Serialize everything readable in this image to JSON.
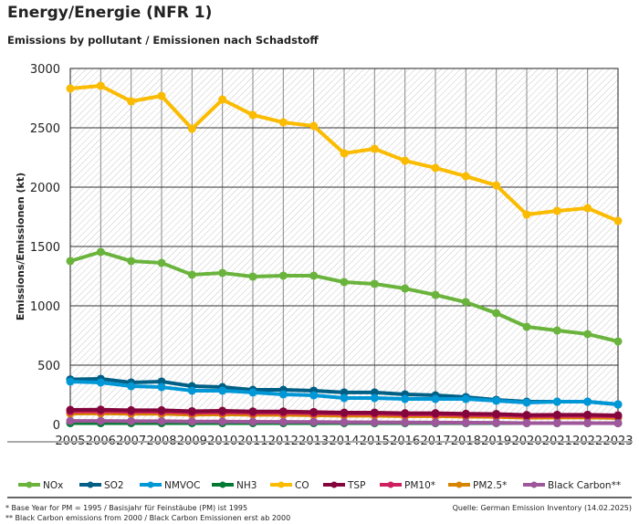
{
  "header": {
    "title": "Energy/Energie (NFR 1)",
    "subtitle": "Emissions by pollutant / Emissionen nach Schadstoff"
  },
  "footnotes": {
    "note1": "* Base Year for PM = 1995 / Basisjahr für Feinstäube (PM) ist 1995",
    "note2": "** Black Carbon emissions from 2000 / Black Carbon Emissionen erst ab 2000",
    "source": "Quelle: German Emission Inventory (14.02.2025)"
  },
  "chart_data": {
    "type": "line",
    "title": "Energy/Energie (NFR 1)",
    "subtitle": "Emissions by pollutant / Emissionen nach Schadstoff",
    "xlabel": "",
    "ylabel": "Emissions/Emissionen (kt)",
    "ylim": [
      0,
      3000
    ],
    "yticks": [
      0,
      500,
      1000,
      1500,
      2000,
      2500,
      3000
    ],
    "grid": true,
    "legend": "bottom",
    "x": [
      2005,
      2006,
      2007,
      2008,
      2009,
      2010,
      2011,
      2012,
      2013,
      2014,
      2015,
      2016,
      2017,
      2018,
      2019,
      2020,
      2021,
      2022,
      2023
    ],
    "series": [
      {
        "name": "NOx",
        "color": "#6ab33c",
        "values": [
          1377,
          1454,
          1377,
          1362,
          1262,
          1277,
          1246,
          1254,
          1254,
          1200,
          1185,
          1146,
          1092,
          1031,
          938,
          823,
          792,
          762,
          700
        ]
      },
      {
        "name": "SO2",
        "color": "#005f85",
        "values": [
          380,
          385,
          354,
          362,
          323,
          315,
          292,
          292,
          285,
          270,
          270,
          254,
          246,
          231,
          208,
          192,
          192,
          192,
          169
        ]
      },
      {
        "name": "NMVOC",
        "color": "#0097d6",
        "values": [
          362,
          354,
          323,
          315,
          285,
          285,
          270,
          254,
          246,
          223,
          223,
          215,
          215,
          215,
          200,
          185,
          192,
          192,
          170
        ]
      },
      {
        "name": "NH3",
        "color": "#007a32",
        "values": [
          12,
          12,
          12,
          12,
          12,
          12,
          12,
          12,
          12,
          12,
          12,
          12,
          12,
          12,
          12,
          12,
          12,
          12,
          12
        ]
      },
      {
        "name": "CO",
        "color": "#fabb00",
        "values": [
          2831,
          2854,
          2723,
          2769,
          2492,
          2738,
          2608,
          2546,
          2515,
          2285,
          2323,
          2223,
          2162,
          2092,
          2015,
          1769,
          1800,
          1823,
          1715
        ]
      },
      {
        "name": "TSP",
        "color": "#83053c",
        "values": [
          123,
          125,
          120,
          120,
          112,
          115,
          110,
          110,
          105,
          100,
          100,
          95,
          95,
          90,
          88,
          80,
          82,
          82,
          77
        ]
      },
      {
        "name": "PM10*",
        "color": "#ce1f5e",
        "values": [
          110,
          112,
          108,
          108,
          100,
          103,
          98,
          98,
          94,
          90,
          90,
          85,
          85,
          80,
          78,
          70,
          72,
          72,
          68
        ]
      },
      {
        "name": "PM2.5*",
        "color": "#d78400",
        "values": [
          92,
          94,
          90,
          90,
          83,
          86,
          82,
          82,
          78,
          74,
          74,
          70,
          70,
          66,
          64,
          57,
          59,
          59,
          55
        ]
      },
      {
        "name": "Black Carbon**",
        "color": "#9d579a",
        "values": [
          30,
          30,
          28,
          28,
          25,
          25,
          23,
          22,
          21,
          19,
          18,
          17,
          16,
          15,
          14,
          12,
          12,
          12,
          11
        ]
      }
    ]
  }
}
